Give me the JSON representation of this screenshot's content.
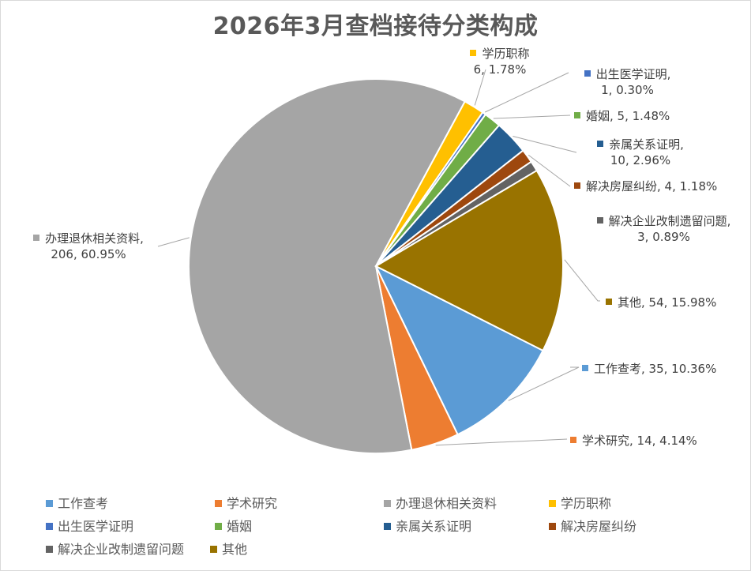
{
  "chart_data": {
    "type": "pie",
    "title": "2026年3月查档接待分类构成",
    "start_angle_deg": 116.8,
    "categories": [
      "工作查考",
      "学术研究",
      "办理退休相关资料",
      "学历职称",
      "出生医学证明",
      "婚姻",
      "亲属关系证明",
      "解决房屋纠纷",
      "解决企业改制遗留问题",
      "其他"
    ],
    "values": [
      35,
      14,
      206,
      6,
      1,
      5,
      10,
      4,
      3,
      54
    ],
    "percentages": [
      "10.36%",
      "4.14%",
      "60.95%",
      "1.78%",
      "0.30%",
      "1.48%",
      "2.96%",
      "1.18%",
      "0.89%",
      "15.98%"
    ],
    "colors": [
      "#5B9BD5",
      "#ED7D31",
      "#A5A5A5",
      "#FFC000",
      "#4472C4",
      "#70AD47",
      "#255E91",
      "#9E480E",
      "#636363",
      "#997300"
    ],
    "legend_position": "bottom",
    "data_labels": [
      {
        "lines": [
          "工作查考, 35, 10.36%"
        ]
      },
      {
        "lines": [
          "学术研究, 14, 4.14%"
        ]
      },
      {
        "lines": [
          "办理退休相关资料,",
          "206, 60.95%"
        ]
      },
      {
        "lines": [
          "学历职称",
          "6, 1.78%"
        ]
      },
      {
        "lines": [
          "出生医学证明,",
          "1, 0.30%"
        ]
      },
      {
        "lines": [
          "婚姻, 5, 1.48%"
        ]
      },
      {
        "lines": [
          "亲属关系证明,",
          "10, 2.96%"
        ]
      },
      {
        "lines": [
          "解决房屋纠纷, 4, 1.18%"
        ]
      },
      {
        "lines": [
          "解决企业改制遗留问题,",
          "3, 0.89%"
        ]
      },
      {
        "lines": [
          "其他, 54, 15.98%"
        ]
      }
    ]
  },
  "title": "2026年3月查档接待分类构成",
  "legend": [
    {
      "label": "工作查考",
      "color": "#5B9BD5"
    },
    {
      "label": "学术研究",
      "color": "#ED7D31"
    },
    {
      "label": "办理退休相关资料",
      "color": "#A5A5A5"
    },
    {
      "label": "学历职称",
      "color": "#FFC000"
    },
    {
      "label": "出生医学证明",
      "color": "#4472C4"
    },
    {
      "label": "婚姻",
      "color": "#70AD47"
    },
    {
      "label": "亲属关系证明",
      "color": "#255E91"
    },
    {
      "label": "解决房屋纠纷",
      "color": "#9E480E"
    },
    {
      "label": "解决企业改制遗留问题",
      "color": "#636363"
    },
    {
      "label": "其他",
      "color": "#997300"
    }
  ]
}
